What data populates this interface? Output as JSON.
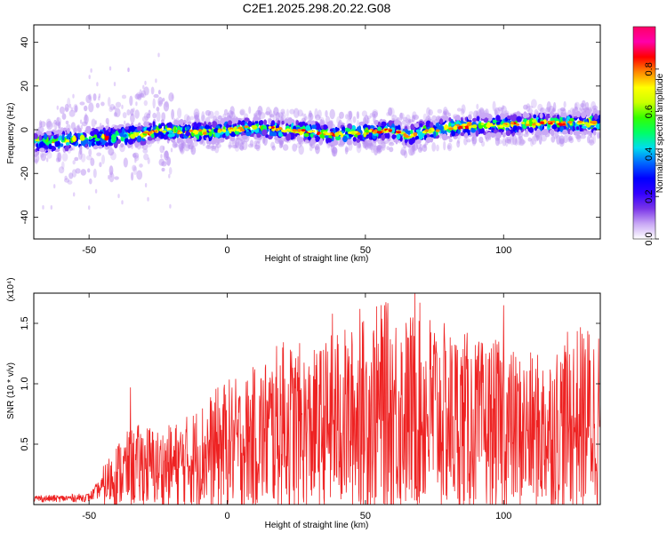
{
  "title": "C2E1.2025.298.20.22.G08",
  "chart_data": [
    {
      "type": "heatmap",
      "xlabel": "Height of straight line (km)",
      "ylabel": "Frequency (Hz)",
      "xlim": [
        -70,
        135
      ],
      "ylim": [
        -50,
        48
      ],
      "xticks": [
        -50,
        0,
        50,
        100
      ],
      "yticks": [
        -40,
        -20,
        0,
        20,
        40
      ],
      "ridge": {
        "x": [
          -70,
          -50,
          -30,
          -25,
          -15,
          -5,
          0,
          10,
          20,
          30,
          40,
          50,
          60,
          65,
          70,
          80,
          90,
          100,
          110,
          120,
          135
        ],
        "frequency": [
          -6,
          -4,
          -2,
          0,
          -1,
          -1,
          0,
          1,
          0,
          -1,
          -2,
          -1,
          0,
          -3,
          -1,
          1,
          2,
          2,
          3,
          3,
          3
        ]
      },
      "colorbar": {
        "label": "Normalized spectral amplitude",
        "range": [
          0,
          1
        ],
        "ticks": [
          "0.0",
          "0.2",
          "0.4",
          "0.6",
          "0.8"
        ],
        "colors": [
          "#ffffff",
          "#c9a8f5",
          "#7a35e8",
          "#3300ff",
          "#0000ff",
          "#0066ff",
          "#00ddee",
          "#00ff66",
          "#33ff00",
          "#ccff00",
          "#ffff00",
          "#ff8800",
          "#ff0000",
          "#ff00aa",
          "#ff0066"
        ]
      }
    },
    {
      "type": "line",
      "xlabel": "Height of straight line (km)",
      "ylabel": "SNR (10 * v/v)",
      "y_multiplier": "(x10⁴)",
      "xlim": [
        -70,
        135
      ],
      "ylim": [
        0,
        1.75
      ],
      "xticks": [
        -50,
        0,
        50,
        100
      ],
      "yticks": [
        "0.5",
        "1.0",
        "1.5"
      ],
      "series_color": "#ee2222",
      "series": [
        {
          "x": [
            -70,
            -60,
            -50,
            -45,
            -40,
            -35,
            -30,
            -25,
            -20,
            -15,
            -10,
            -5,
            0,
            5,
            10,
            15,
            20,
            25,
            30,
            35,
            40,
            45,
            50,
            55,
            60,
            65,
            70,
            75,
            80,
            85,
            90,
            95,
            100,
            105,
            110,
            115,
            120,
            125,
            130,
            135
          ],
          "values": [
            0.05,
            0.05,
            0.06,
            0.15,
            0.25,
            0.3,
            0.33,
            0.3,
            0.32,
            0.35,
            0.4,
            0.45,
            0.5,
            0.5,
            0.55,
            0.6,
            0.65,
            0.65,
            0.6,
            0.65,
            0.7,
            0.7,
            0.75,
            0.8,
            0.8,
            0.75,
            0.8,
            0.75,
            0.7,
            0.7,
            0.65,
            0.65,
            0.65,
            0.6,
            0.6,
            0.6,
            0.65,
            0.7,
            0.72,
            0.72
          ]
        }
      ],
      "peaks": [
        {
          "x": -35,
          "y": 0.97
        },
        {
          "x": 20,
          "y": 1.3
        },
        {
          "x": 38,
          "y": 1.58
        },
        {
          "x": 48,
          "y": 1.62
        },
        {
          "x": 57,
          "y": 1.65
        },
        {
          "x": 68,
          "y": 1.75
        },
        {
          "x": 75,
          "y": 1.42
        },
        {
          "x": 100,
          "y": 1.65
        }
      ]
    }
  ]
}
